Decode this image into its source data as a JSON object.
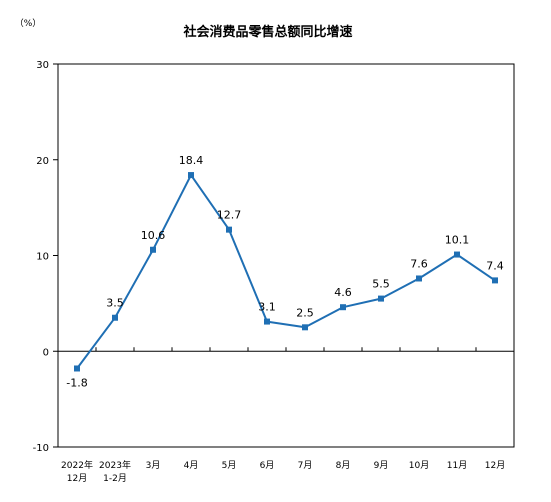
{
  "chart_data": {
    "type": "line",
    "title": "社会消费品零售总额同比增速",
    "unit_label": "（%）",
    "categories": [
      [
        "2022年",
        "12月"
      ],
      [
        "2023年",
        "1-2月"
      ],
      [
        "3月"
      ],
      [
        "4月"
      ],
      [
        "5月"
      ],
      [
        "6月"
      ],
      [
        "7月"
      ],
      [
        "8月"
      ],
      [
        "9月"
      ],
      [
        "10月"
      ],
      [
        "11月"
      ],
      [
        "12月"
      ]
    ],
    "series": [
      {
        "values": [
          -1.8,
          3.5,
          10.6,
          18.4,
          12.7,
          3.1,
          2.5,
          4.6,
          5.5,
          7.6,
          10.1,
          7.4
        ],
        "labels": [
          "-1.8",
          "3.5",
          "10.6",
          "18.4",
          "12.7",
          "3.1",
          "2.5",
          "4.6",
          "5.5",
          "7.6",
          "10.1",
          "7.4"
        ],
        "color": "#1f6fb4"
      }
    ],
    "ylim": [
      -10,
      30
    ],
    "yticks": [
      -10,
      0,
      10,
      20,
      30
    ],
    "grid": false,
    "legend": "none"
  }
}
